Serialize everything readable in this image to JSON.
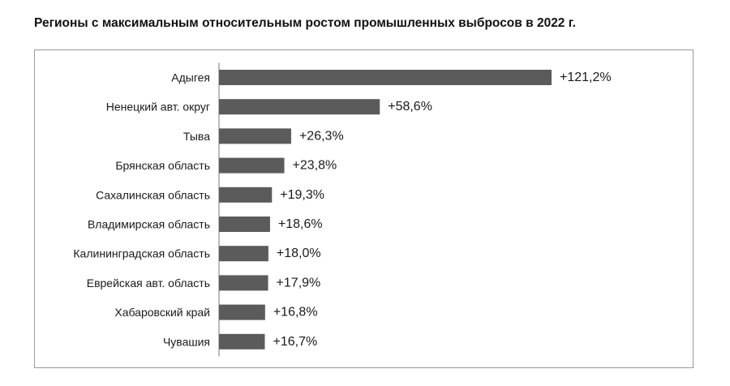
{
  "title": "Регионы с максимальным относительным ростом промышленных выбросов в 2022 г.",
  "colors": {
    "bar": "#5b5b5b",
    "frame": "#9a9a9a",
    "axis": "#777777"
  },
  "chart_data": {
    "type": "bar",
    "orientation": "horizontal",
    "title": "Регионы с максимальным относительным ростом промышленных выбросов в 2022 г.",
    "categories": [
      "Адыгея",
      "Ненецкий авт. округ",
      "Тыва",
      "Брянская область",
      "Сахалинская область",
      "Владимирская область",
      "Калининградская область",
      "Еврейская авт. область",
      "Хабаровский край",
      "Чувашия"
    ],
    "values": [
      121.2,
      58.6,
      26.3,
      23.8,
      19.3,
      18.6,
      18.0,
      17.9,
      16.8,
      16.7
    ],
    "value_labels": [
      "+121,2%",
      "+58,6%",
      "+26,3%",
      "+23,8%",
      "+19,3%",
      "+18,6%",
      "+18,0%",
      "+17,9%",
      "+16,8%",
      "+16,7%"
    ],
    "xlim": [
      0,
      121.2
    ],
    "grid": false,
    "legend": "none"
  }
}
